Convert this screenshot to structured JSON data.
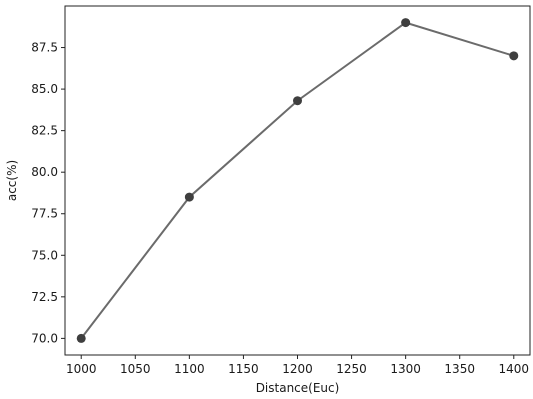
{
  "chart_data": {
    "type": "line",
    "title": "",
    "xlabel": "Distance(Euc)",
    "ylabel": "acc(%)",
    "x": [
      1000,
      1100,
      1200,
      1300,
      1400
    ],
    "series": [
      {
        "values": [
          70.0,
          78.5,
          84.3,
          89.0,
          87.0
        ]
      }
    ],
    "xlim": [
      985,
      1415
    ],
    "ylim": [
      69.0,
      90.0
    ],
    "xticks": [
      "1000",
      "1050",
      "1100",
      "1150",
      "1200",
      "1250",
      "1300",
      "1350",
      "1400"
    ],
    "yticks": [
      "70.0",
      "72.5",
      "75.0",
      "77.5",
      "80.0",
      "82.5",
      "85.0",
      "87.5"
    ],
    "grid": false,
    "legend": "none",
    "line_color": "#6b6b6b",
    "marker_color": "#3f3f3f"
  }
}
